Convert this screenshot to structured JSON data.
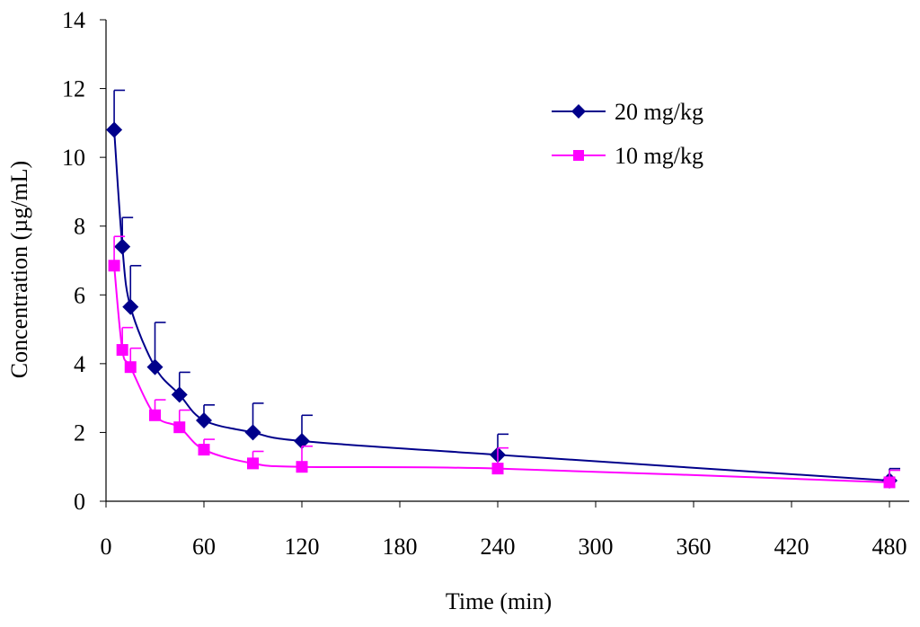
{
  "chart_data": {
    "type": "line",
    "title": "",
    "xlabel": "Time (min)",
    "ylabel": "Concentration (µg/mL)",
    "xlim": [
      0,
      480
    ],
    "ylim": [
      0,
      14
    ],
    "xticks": [
      0,
      60,
      120,
      180,
      240,
      300,
      360,
      420,
      480
    ],
    "yticks": [
      0,
      2,
      4,
      6,
      8,
      10,
      12,
      14
    ],
    "grid": false,
    "legend_position": "top-right",
    "series": [
      {
        "name": "20 mg/kg",
        "color": "#00008B",
        "marker": "diamond",
        "x": [
          5,
          10,
          15,
          30,
          45,
          60,
          90,
          120,
          240,
          480
        ],
        "values": [
          10.8,
          7.4,
          5.65,
          3.9,
          3.1,
          2.35,
          2.0,
          1.75,
          1.35,
          0.6
        ],
        "error": [
          1.15,
          0.85,
          1.2,
          1.3,
          0.65,
          0.45,
          0.85,
          0.75,
          0.6,
          0.35
        ]
      },
      {
        "name": "10 mg/kg",
        "color": "#FF00FF",
        "marker": "square",
        "x": [
          5,
          10,
          15,
          30,
          45,
          60,
          90,
          120,
          240,
          480
        ],
        "values": [
          6.85,
          4.4,
          3.9,
          2.5,
          2.15,
          1.5,
          1.1,
          1.0,
          0.95,
          0.55
        ],
        "error": [
          0.85,
          0.65,
          0.55,
          0.45,
          0.5,
          0.3,
          0.35,
          0.6,
          0.6,
          0.35
        ]
      }
    ]
  }
}
